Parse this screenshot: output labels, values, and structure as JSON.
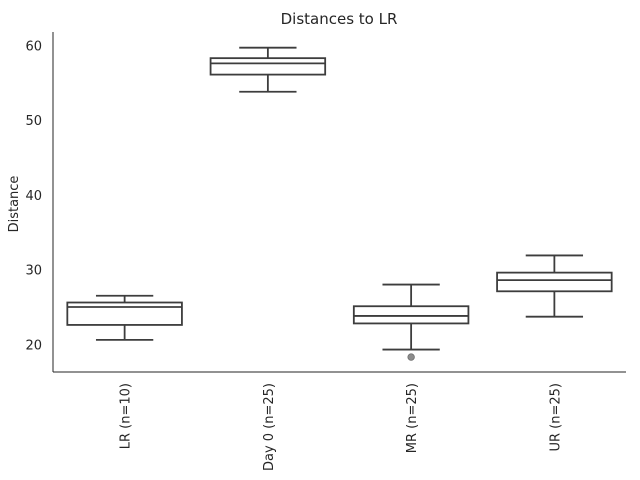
{
  "chart_data": {
    "type": "box",
    "title": "Distances to LR",
    "xlabel": "",
    "ylabel": "Distance",
    "ylim": [
      16.3,
      61.8
    ],
    "yticks": [
      20,
      30,
      40,
      50,
      60
    ],
    "grid": false,
    "categories": [
      "LR (n=10)",
      "Day 0 (n=25)",
      "MR (n=25)",
      "UR (n=25)"
    ],
    "boxes": [
      {
        "category": "LR (n=10)",
        "whisker_low": 20.6,
        "q1": 22.6,
        "median": 25.0,
        "q3": 25.6,
        "whisker_high": 26.5,
        "outliers": []
      },
      {
        "category": "Day 0 (n=25)",
        "whisker_low": 53.8,
        "q1": 56.1,
        "median": 57.6,
        "q3": 58.3,
        "whisker_high": 59.7,
        "outliers": []
      },
      {
        "category": "MR (n=25)",
        "whisker_low": 19.3,
        "q1": 22.8,
        "median": 23.8,
        "q3": 25.1,
        "whisker_high": 28.0,
        "outliers": [
          18.3
        ]
      },
      {
        "category": "UR (n=25)",
        "whisker_low": 23.7,
        "q1": 27.1,
        "median": 28.6,
        "q3": 29.6,
        "whisker_high": 31.9,
        "outliers": []
      }
    ],
    "colors": {
      "box_stroke": "#3d3d3d",
      "box_fill": "#ffffff",
      "outlier": "#8c8c8c",
      "axis": "#262626"
    }
  }
}
